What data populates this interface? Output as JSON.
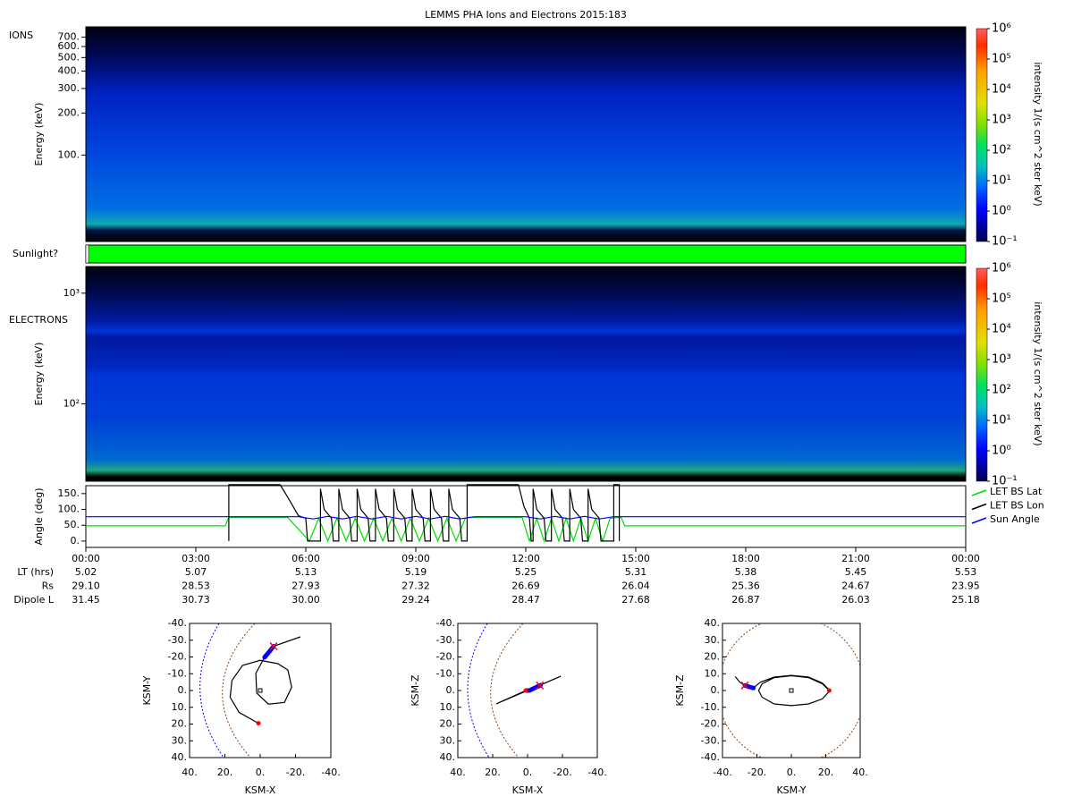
{
  "title": "LEMMS PHA Ions and Electrons  2015:183",
  "chart_data": [
    {
      "type": "spectrogram",
      "label": "IONS",
      "ylabel": "Energy (keV)",
      "log_scale": true,
      "ylim": [
        24,
        830
      ],
      "yticks": [
        {
          "value": 100,
          "label": "100."
        },
        {
          "value": 200,
          "label": "200."
        },
        {
          "value": 300,
          "label": "300."
        },
        {
          "value": 400,
          "label": "400."
        },
        {
          "value": 500,
          "label": "500."
        },
        {
          "value": 600,
          "label": "600."
        },
        {
          "value": 700,
          "label": "700."
        }
      ],
      "colorbar": {
        "label": "intensity 1/(s cm^2 ster keV)",
        "lim": [
          0.1,
          1000000
        ],
        "ticks": [
          {
            "value": 0.1,
            "label": "10⁻¹"
          },
          {
            "value": 1,
            "label": "10⁰"
          },
          {
            "value": 10,
            "label": "10¹"
          },
          {
            "value": 100,
            "label": "10²"
          },
          {
            "value": 1000,
            "label": "10³"
          },
          {
            "value": 10000,
            "label": "10⁴"
          },
          {
            "value": 100000,
            "label": "10⁵"
          },
          {
            "value": 1000000,
            "label": "10⁶"
          }
        ]
      }
    },
    {
      "type": "timeline",
      "label": "Sunlight?",
      "color": "#00ff00"
    },
    {
      "type": "spectrogram",
      "label": "ELECTRONS",
      "ylabel": "Energy (keV)",
      "log_scale": true,
      "ylim": [
        20,
        1740
      ],
      "yticks": [
        {
          "value": 100,
          "label": "10²"
        },
        {
          "value": 1000,
          "label": "10³"
        }
      ],
      "colorbar": {
        "label": "intensity 1/(s cm^2 ster keV)",
        "lim": [
          0.1,
          1000000
        ],
        "ticks": [
          {
            "value": 0.1,
            "label": "10⁻¹"
          },
          {
            "value": 1,
            "label": "10⁰"
          },
          {
            "value": 10,
            "label": "10¹"
          },
          {
            "value": 100,
            "label": "10²"
          },
          {
            "value": 1000,
            "label": "10³"
          },
          {
            "value": 10000,
            "label": "10⁴"
          },
          {
            "value": 100000,
            "label": "10⁵"
          },
          {
            "value": 1000000,
            "label": "10⁶"
          }
        ]
      }
    },
    {
      "type": "line",
      "ylabel": "Angle (deg)",
      "xlim": [
        0,
        24
      ],
      "ylim": [
        -20,
        175
      ],
      "yticks": [
        {
          "value": 0,
          "label": "0."
        },
        {
          "value": 50,
          "label": "50."
        },
        {
          "value": 100,
          "label": "100."
        },
        {
          "value": 150,
          "label": "150."
        }
      ],
      "xticks": [
        {
          "value": 0,
          "label": "00:00"
        },
        {
          "value": 3,
          "label": "03:00"
        },
        {
          "value": 6,
          "label": "06:00"
        },
        {
          "value": 9,
          "label": "09:00"
        },
        {
          "value": 12,
          "label": "12:00"
        },
        {
          "value": 15,
          "label": "15:00"
        },
        {
          "value": 18,
          "label": "18:00"
        },
        {
          "value": 21,
          "label": "21:00"
        },
        {
          "value": 24,
          "label": "00:00"
        }
      ],
      "series": [
        {
          "name": "LET BS Lat",
          "color": "#00dd00",
          "x": [
            0,
            3.8,
            3.9,
            5.5,
            6.1,
            6.35,
            6.6,
            6.85,
            7.1,
            7.35,
            7.6,
            7.85,
            8.1,
            8.35,
            8.6,
            8.85,
            9.1,
            9.35,
            9.6,
            9.85,
            10.1,
            10.35,
            10.45,
            11.9,
            12.1,
            12.3,
            12.5,
            12.7,
            12.9,
            13.1,
            13.3,
            13.5,
            13.7,
            13.9,
            14.1,
            14.3,
            14.6,
            14.7,
            24
          ],
          "y": [
            48,
            48,
            75,
            75,
            0,
            72,
            0,
            72,
            0,
            72,
            0,
            72,
            0,
            72,
            0,
            72,
            0,
            72,
            0,
            72,
            0,
            72,
            75,
            75,
            0,
            72,
            0,
            72,
            0,
            72,
            0,
            72,
            0,
            72,
            0,
            72,
            75,
            48,
            48
          ]
        },
        {
          "name": "LET BS Lon",
          "color": "#000000",
          "x": [
            3.9,
            3.9,
            5.3,
            5.5,
            5.8,
            6.0,
            6.05,
            6.4,
            6.4,
            6.5,
            6.7,
            6.75,
            6.9,
            6.9,
            7.0,
            7.2,
            7.25,
            7.4,
            7.4,
            7.5,
            7.7,
            7.75,
            7.9,
            7.9,
            8.0,
            8.2,
            8.25,
            8.4,
            8.4,
            8.5,
            8.7,
            8.75,
            8.9,
            8.9,
            9.0,
            9.2,
            9.25,
            9.4,
            9.4,
            9.5,
            9.7,
            9.75,
            9.9,
            9.9,
            10.0,
            10.2,
            10.25,
            10.4,
            10.4,
            11.8,
            11.95,
            12.1,
            12.15,
            12.2,
            12.2,
            12.3,
            12.5,
            12.55,
            12.7,
            12.7,
            12.8,
            13.0,
            13.05,
            13.2,
            13.2,
            13.3,
            13.5,
            13.55,
            13.7,
            13.7,
            13.8,
            14.0,
            14.05,
            14.4,
            14.4,
            14.55,
            14.55
          ],
          "y": [
            0,
            178,
            178,
            140,
            80,
            72,
            0,
            0,
            165,
            100,
            72,
            0,
            0,
            165,
            100,
            72,
            0,
            0,
            165,
            100,
            72,
            0,
            0,
            165,
            100,
            72,
            0,
            0,
            165,
            100,
            72,
            0,
            0,
            165,
            100,
            72,
            0,
            0,
            165,
            100,
            72,
            0,
            0,
            165,
            100,
            72,
            0,
            0,
            178,
            178,
            110,
            72,
            0,
            0,
            165,
            100,
            72,
            0,
            0,
            165,
            100,
            72,
            0,
            0,
            165,
            100,
            72,
            0,
            0,
            165,
            100,
            72,
            0,
            0,
            178,
            178,
            0
          ]
        },
        {
          "name": "Sun Angle",
          "color": "#0000ff",
          "x": [
            0,
            5.8,
            6.2,
            6.6,
            7.0,
            7.4,
            7.8,
            8.2,
            8.6,
            9.0,
            9.4,
            9.8,
            10.2,
            10.6,
            12.0,
            12.4,
            12.8,
            13.2,
            13.6,
            14.0,
            14.4,
            24
          ],
          "y": [
            77,
            77,
            70,
            78,
            70,
            78,
            70,
            78,
            70,
            78,
            70,
            78,
            70,
            77,
            77,
            70,
            78,
            70,
            78,
            70,
            77,
            77
          ]
        }
      ],
      "ephemeris": [
        {
          "label": "LT (hrs)",
          "values": [
            "5.02",
            "5.07",
            "5.13",
            "5.19",
            "5.25",
            "5.31",
            "5.38",
            "5.45",
            "5.53"
          ]
        },
        {
          "label": "Rs",
          "values": [
            "29.10",
            "28.53",
            "27.93",
            "27.32",
            "26.69",
            "26.04",
            "25.36",
            "24.67",
            "23.95"
          ]
        },
        {
          "label": "Dipole L",
          "values": [
            "31.45",
            "30.73",
            "30.00",
            "29.24",
            "28.47",
            "27.68",
            "26.87",
            "26.03",
            "25.18"
          ]
        }
      ]
    },
    {
      "type": "orbit",
      "xlabel": "KSM-X",
      "ylabel": "KSM-Y",
      "xlim": [
        40,
        -40
      ],
      "ylim": [
        40,
        -40
      ],
      "xticks": [
        {
          "value": 40,
          "label": "40."
        },
        {
          "value": 20,
          "label": "20."
        },
        {
          "value": 0,
          "label": "0."
        },
        {
          "value": -20,
          "label": "-20."
        },
        {
          "value": -40,
          "label": "-40."
        }
      ],
      "yticks": [
        {
          "value": -40,
          "label": "-40."
        },
        {
          "value": -30,
          "label": "-30."
        },
        {
          "value": -20,
          "label": "-20."
        },
        {
          "value": -10,
          "label": "-10."
        },
        {
          "value": 0,
          "label": "0."
        },
        {
          "value": 10,
          "label": "10."
        },
        {
          "value": 20,
          "label": "20."
        },
        {
          "value": 30,
          "label": "30."
        },
        {
          "value": 40,
          "label": "40."
        }
      ],
      "orbit": {
        "x": [
          -22.8,
          -7.6,
          -2.5,
          2.5,
          2,
          -4.6,
          -13.7,
          -17.8,
          -15.7,
          -10,
          0,
          10,
          16,
          17,
          12,
          1
        ],
        "y": [
          -32,
          -26.4,
          -19.8,
          -10.2,
          1.5,
          8.1,
          7.1,
          -2,
          -12.2,
          -16,
          -18,
          -15,
          -6,
          4,
          13,
          19.5
        ]
      },
      "day": {
        "x": [
          -7.6,
          -5,
          -2.5
        ],
        "y": [
          -26.4,
          -23,
          -19.8
        ]
      },
      "start": {
        "x": -7.6,
        "y": -26.4
      },
      "end": {
        "x": 1,
        "y": 19.5
      }
    },
    {
      "type": "orbit",
      "xlabel": "KSM-X",
      "ylabel": "KSM-Z",
      "xlim": [
        40,
        -40
      ],
      "ylim": [
        40,
        -40
      ],
      "xticks": [
        {
          "value": 40,
          "label": "40."
        },
        {
          "value": 20,
          "label": "20."
        },
        {
          "value": 0,
          "label": "0."
        },
        {
          "value": -20,
          "label": "-20."
        },
        {
          "value": -40,
          "label": "-40."
        }
      ],
      "yticks": [
        {
          "value": -40,
          "label": "-40."
        },
        {
          "value": -30,
          "label": "-30."
        },
        {
          "value": -20,
          "label": "-20."
        },
        {
          "value": -10,
          "label": "-10."
        },
        {
          "value": 0,
          "label": "0."
        },
        {
          "value": 10,
          "label": "10."
        },
        {
          "value": 20,
          "label": "20."
        },
        {
          "value": 30,
          "label": "30."
        },
        {
          "value": 40,
          "label": "40."
        }
      ],
      "orbit": {
        "x": [
          18,
          -19,
          -18,
          17,
          1
        ],
        "y": [
          8,
          -8.5,
          -8,
          7.5,
          0
        ]
      },
      "day": {
        "x": [
          -1,
          -4,
          -7.5
        ],
        "y": [
          0,
          -1.5,
          -3.2
        ]
      },
      "start": {
        "x": -7,
        "y": -3
      },
      "end": {
        "x": 1,
        "y": 0
      }
    },
    {
      "type": "orbit",
      "xlabel": "KSM-Y",
      "ylabel": "KSM-Z",
      "xlim": [
        -40,
        40
      ],
      "ylim": [
        -40,
        40
      ],
      "xticks": [
        {
          "value": -40,
          "label": "-40."
        },
        {
          "value": -20,
          "label": "-20."
        },
        {
          "value": 0,
          "label": "0."
        },
        {
          "value": 20,
          "label": "20."
        },
        {
          "value": 40,
          "label": "40."
        }
      ],
      "yticks": [
        {
          "value": 40,
          "label": "40."
        },
        {
          "value": 30,
          "label": "30."
        },
        {
          "value": 20,
          "label": "20."
        },
        {
          "value": 10,
          "label": "10."
        },
        {
          "value": 0,
          "label": "0."
        },
        {
          "value": -10,
          "label": "-10."
        },
        {
          "value": -20,
          "label": "-20."
        },
        {
          "value": -30,
          "label": "-30."
        },
        {
          "value": -40,
          "label": "-40."
        }
      ],
      "orbit": {
        "x": [
          -32.6,
          -30,
          -27,
          -22,
          -18,
          -10,
          0,
          10,
          18,
          22.5,
          18,
          10,
          0,
          -10,
          -17,
          -19,
          -17,
          -10,
          0,
          10,
          18,
          22
        ],
        "y": [
          8.3,
          5,
          3,
          1.5,
          5,
          8,
          9,
          8,
          4.5,
          0,
          -5,
          -8,
          -9,
          -8,
          -4,
          0,
          4,
          7.7,
          8.8,
          7.7,
          4,
          0
        ]
      },
      "day": {
        "x": [
          -27,
          -24.5,
          -22
        ],
        "y": [
          3,
          2.2,
          1.5
        ]
      },
      "start": {
        "x": -27,
        "y": 3
      },
      "end": {
        "x": 22,
        "y": 0
      }
    }
  ]
}
